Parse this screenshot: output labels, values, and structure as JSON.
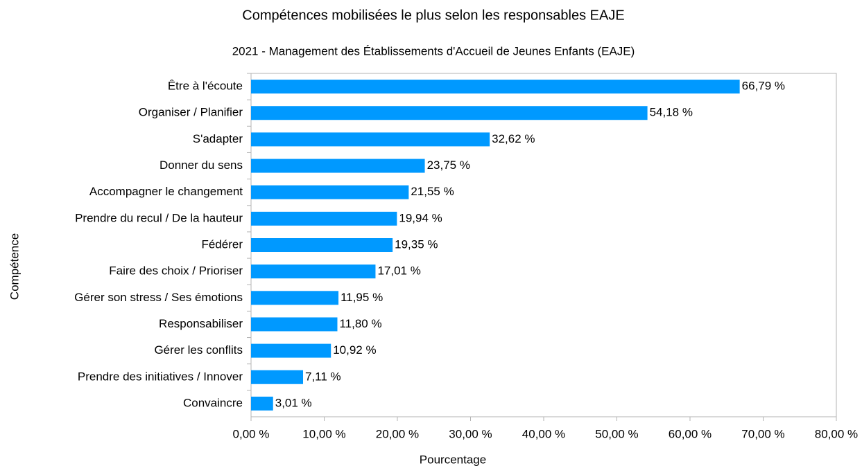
{
  "chart_data": {
    "type": "bar",
    "orientation": "horizontal",
    "title": "Compétences mobilisées le plus selon les responsables EAJE",
    "subtitle": "2021 - Management des Établissements d'Accueil de Jeunes Enfants (EAJE)",
    "x_label": "Pourcentage",
    "y_label": "Compétence",
    "categories": [
      "Être à l'écoute",
      "Organiser / Planifier",
      "S'adapter",
      "Donner du sens",
      "Accompagner le changement",
      "Prendre du recul / De la hauteur",
      "Fédérer",
      "Faire des choix / Prioriser",
      "Gérer son stress / Ses émotions",
      "Responsabiliser",
      "Gérer les conflits",
      "Prendre des initiatives / Innover",
      "Convaincre"
    ],
    "values": [
      66.79,
      54.18,
      32.62,
      23.75,
      21.55,
      19.94,
      19.35,
      17.01,
      11.95,
      11.8,
      10.92,
      7.11,
      3.01
    ],
    "value_labels": [
      "66,79 %",
      "54,18 %",
      "32,62 %",
      "23,75 %",
      "21,55 %",
      "19,94 %",
      "19,35 %",
      "17,01 %",
      "11,95 %",
      "11,80 %",
      "10,92 %",
      "7,11 %",
      "3,01 %"
    ],
    "color": "#0099ff",
    "xlim": [
      0,
      80
    ],
    "xticks": [
      {
        "value": 0,
        "label": "0,00 %"
      },
      {
        "value": 10,
        "label": "10,00 %"
      },
      {
        "value": 20,
        "label": "20,00 %"
      },
      {
        "value": 30,
        "label": "30,00 %"
      },
      {
        "value": 40,
        "label": "40,00 %"
      },
      {
        "value": 50,
        "label": "50,00 %"
      },
      {
        "value": 60,
        "label": "60,00 %"
      },
      {
        "value": 70,
        "label": "70,00 %"
      },
      {
        "value": 80,
        "label": "80,00 %"
      }
    ],
    "grid": false
  }
}
